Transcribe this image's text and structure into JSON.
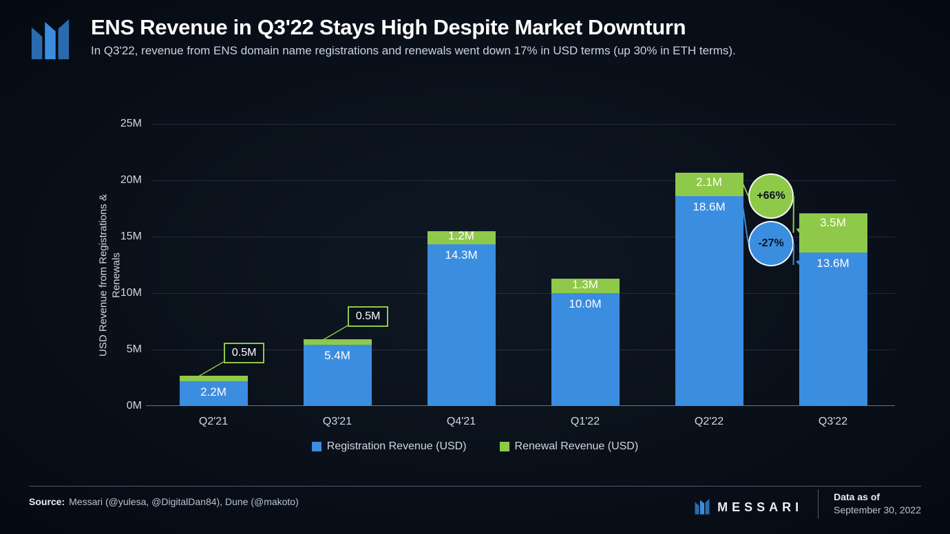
{
  "header": {
    "title": "ENS Revenue in Q3'22 Stays High Despite Market Downturn",
    "subtitle": "In Q3'22, revenue from ENS domain name registrations and renewals went down 17% in USD terms (up 30% in ETH terms)."
  },
  "chart": {
    "type": "stacked-bar",
    "y_axis_label": "USD Revenue from Registrations & Renewals",
    "ylim": [
      0,
      25
    ],
    "ytick_step": 5,
    "y_ticks": [
      "0M",
      "5M",
      "10M",
      "15M",
      "20M",
      "25M"
    ],
    "categories": [
      "Q2'21",
      "Q3'21",
      "Q4'21",
      "Q1'22",
      "Q2'22",
      "Q3'22"
    ],
    "series": {
      "registration": {
        "label": "Registration Revenue (USD)",
        "color": "#3b8de0",
        "values": [
          2.2,
          5.4,
          14.3,
          10.0,
          18.6,
          13.6
        ],
        "display": [
          "2.2M",
          "5.4M",
          "14.3M",
          "10.0M",
          "18.6M",
          "13.6M"
        ]
      },
      "renewal": {
        "label": "Renewal Revenue (USD)",
        "color": "#8fc94a",
        "values": [
          0.5,
          0.5,
          1.2,
          1.3,
          2.1,
          3.5
        ],
        "display": [
          "0.5M",
          "0.5M",
          "1.2M",
          "1.3M",
          "2.1M",
          "3.5M"
        ]
      }
    },
    "renewal_callouts": [
      {
        "category_index": 0,
        "text": "0.5M"
      },
      {
        "category_index": 1,
        "text": "0.5M"
      }
    ],
    "pct_bubbles": [
      {
        "text": "+66%",
        "color": "#8fc94a",
        "from_index": 4,
        "to_index": 5,
        "segment": "renewal"
      },
      {
        "text": "-27%",
        "color": "#3b8de0",
        "from_index": 4,
        "to_index": 5,
        "segment": "registration"
      }
    ],
    "bar_width_ratio": 0.55,
    "grid_color": "rgba(120,140,165,0.22)",
    "text_color": "#d0d8e2",
    "label_fontsize": 16
  },
  "legend": {
    "items": [
      {
        "swatch": "#3b8de0",
        "label": "Registration Revenue (USD)"
      },
      {
        "swatch": "#8fc94a",
        "label": "Renewal Revenue (USD)"
      }
    ]
  },
  "footer": {
    "source_label": "Source:",
    "source_text": "Messari (@yulesa, @DigitalDan84), Dune (@makoto)",
    "brand": "MESSARI",
    "date_label": "Data as of",
    "date_value": "September 30, 2022"
  },
  "colors": {
    "logo_primary": "#3b8de0",
    "logo_secondary": "#2a6bb0"
  }
}
